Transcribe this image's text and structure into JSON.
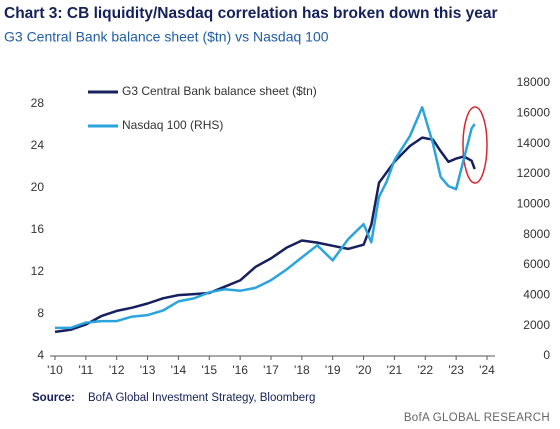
{
  "chart_data": {
    "type": "line",
    "title": "Chart 3: CB liquidity/Nasdaq correlation has broken down this year",
    "subtitle": "G3 Central Bank balance sheet ($tn) vs Nasdaq 100",
    "source_label": "Source:",
    "source": "BofA Global Investment Strategy, Bloomberg",
    "footer": "BofA GLOBAL RESEARCH",
    "x": [
      2010,
      2010.5,
      2011,
      2011.5,
      2012,
      2012.5,
      2013,
      2013.5,
      2014,
      2014.5,
      2015,
      2015.5,
      2016,
      2016.5,
      2017,
      2017.5,
      2018,
      2018.5,
      2019,
      2019.5,
      2020,
      2020.25,
      2020.5,
      2020.75,
      2021,
      2021.5,
      2021.9,
      2022.25,
      2022.5,
      2022.75,
      2023,
      2023.25,
      2023.5,
      2023.6
    ],
    "series": [
      {
        "name": "G3 Central Bank balance sheet ($tn)",
        "color": "#16205e",
        "axis": "y",
        "values": [
          6.3,
          6.5,
          7.0,
          7.8,
          8.3,
          8.6,
          9.0,
          9.5,
          9.8,
          9.9,
          10.0,
          10.6,
          11.2,
          12.5,
          13.3,
          14.3,
          15.0,
          14.8,
          14.5,
          14.2,
          14.6,
          16.5,
          20.5,
          21.5,
          22.5,
          24.0,
          24.8,
          24.6,
          23.5,
          22.5,
          22.8,
          23.0,
          22.6,
          21.8
        ]
      },
      {
        "name": "Nasdaq 100 (RHS)",
        "color": "#2ba4dd",
        "axis": "y2",
        "values": [
          1850,
          1850,
          2200,
          2300,
          2300,
          2600,
          2700,
          3000,
          3600,
          3800,
          4200,
          4400,
          4300,
          4500,
          5000,
          5700,
          6500,
          7300,
          6300,
          7700,
          8700,
          7500,
          10500,
          11500,
          12900,
          14500,
          16400,
          14000,
          11800,
          11200,
          11000,
          13000,
          15000,
          15300
        ]
      }
    ],
    "xlim": [
      2010,
      2024
    ],
    "xticks": [
      {
        "value": 2010,
        "label": "'10"
      },
      {
        "value": 2011,
        "label": "'11"
      },
      {
        "value": 2012,
        "label": "'12"
      },
      {
        "value": 2013,
        "label": "'13"
      },
      {
        "value": 2014,
        "label": "'14"
      },
      {
        "value": 2015,
        "label": "'15"
      },
      {
        "value": 2016,
        "label": "'16"
      },
      {
        "value": 2017,
        "label": "'17"
      },
      {
        "value": 2018,
        "label": "'18"
      },
      {
        "value": 2019,
        "label": "'19"
      },
      {
        "value": 2020,
        "label": "'20"
      },
      {
        "value": 2021,
        "label": "'21"
      },
      {
        "value": 2022,
        "label": "'22"
      },
      {
        "value": 2023,
        "label": "'23"
      },
      {
        "value": 2024,
        "label": "'24"
      }
    ],
    "ylim": [
      4,
      30
    ],
    "yticks": [
      4,
      8,
      12,
      16,
      20,
      24,
      28
    ],
    "y2lim": [
      0,
      18000
    ],
    "y2ticks": [
      0,
      2000,
      4000,
      6000,
      8000,
      10000,
      12000,
      14000,
      16000,
      18000
    ],
    "grid": false,
    "legend": "top-left"
  }
}
